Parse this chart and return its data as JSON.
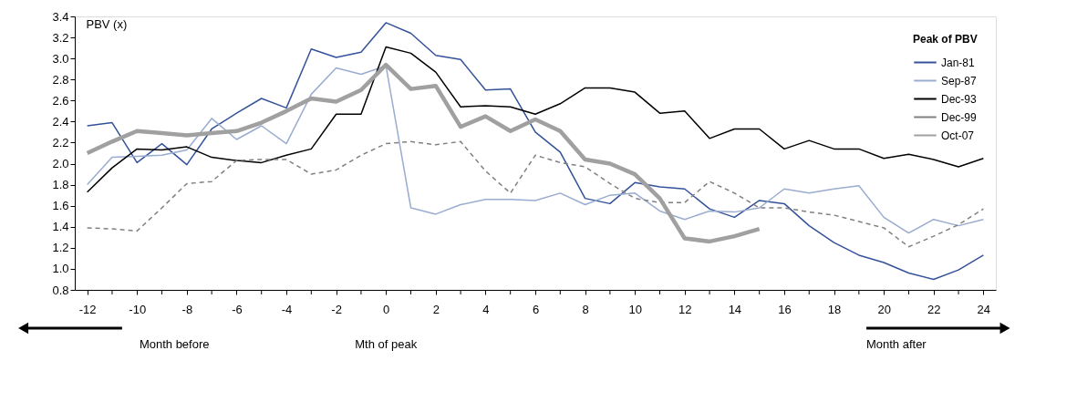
{
  "chart_data": {
    "type": "line",
    "ylabel": "PBV (x)",
    "legend_title": "Peak of PBV",
    "legend": "top right",
    "grid": false,
    "marker": "none",
    "x": [
      -12,
      -11,
      -10,
      -9,
      -8,
      -7,
      -6,
      -5,
      -4,
      -3,
      -2,
      -1,
      0,
      1,
      2,
      3,
      4,
      5,
      6,
      7,
      8,
      9,
      10,
      11,
      12,
      13,
      14,
      15,
      16,
      17,
      18,
      19,
      20,
      21,
      22,
      23,
      24
    ],
    "xlim": [
      -12.5,
      24.5
    ],
    "ylim": [
      0.8,
      3.4
    ],
    "xticks": [
      -12,
      {
        "value": -11,
        "label": null
      },
      -10,
      {
        "value": -9,
        "label": null
      },
      -8,
      {
        "value": -7,
        "label": null
      },
      -6,
      {
        "value": -5,
        "label": null
      },
      -4,
      {
        "value": -3,
        "label": null
      },
      -2,
      {
        "value": -1,
        "label": null
      },
      0,
      {
        "value": 1,
        "label": null
      },
      2,
      {
        "value": 3,
        "label": null
      },
      4,
      {
        "value": 5,
        "label": null
      },
      6,
      {
        "value": 7,
        "label": null
      },
      8,
      {
        "value": 9,
        "label": null
      },
      10,
      {
        "value": 11,
        "label": null
      },
      12,
      {
        "value": 13,
        "label": null
      },
      14,
      {
        "value": 15,
        "label": null
      },
      16,
      {
        "value": 17,
        "label": null
      },
      18,
      {
        "value": 19,
        "label": null
      },
      20,
      {
        "value": 21,
        "label": null
      },
      22,
      {
        "value": 23,
        "label": null
      },
      24
    ],
    "yticks": [
      {
        "value": 0.8,
        "label": "0.8"
      },
      {
        "value": 1.0,
        "label": "1.0"
      },
      1.2,
      1.4,
      1.6,
      1.8,
      {
        "value": 2.0,
        "label": "2.0"
      },
      2.2,
      2.4,
      2.6,
      2.8,
      {
        "value": 3.0,
        "label": "3.0"
      },
      3.2,
      3.4
    ],
    "annotations": [
      "Month before",
      "Mth of peak",
      "Month after"
    ],
    "series": [
      {
        "name": "Jan-81",
        "color": "#34529a",
        "line_style": "solid",
        "values": [
          2.36,
          2.39,
          2.01,
          2.19,
          1.99,
          2.33,
          2.48,
          2.62,
          2.53,
          3.09,
          3.01,
          3.06,
          3.34,
          3.24,
          3.03,
          2.99,
          2.7,
          2.71,
          2.3,
          2.11,
          1.67,
          1.62,
          1.82,
          1.78,
          1.76,
          1.57,
          1.49,
          1.65,
          1.62,
          1.41,
          1.25,
          1.13,
          1.06,
          0.96,
          0.9,
          0.99,
          1.13
        ]
      },
      {
        "name": "Sep-87",
        "color": "#9aaccf",
        "line_style": "solid",
        "values": [
          1.8,
          2.06,
          2.07,
          2.08,
          2.13,
          2.43,
          2.23,
          2.36,
          2.19,
          2.66,
          2.91,
          2.85,
          2.93,
          1.58,
          1.52,
          1.61,
          1.66,
          1.66,
          1.65,
          1.72,
          1.61,
          1.7,
          1.72,
          1.55,
          1.47,
          1.55,
          1.54,
          1.58,
          1.76,
          1.72,
          1.76,
          1.79,
          1.49,
          1.34,
          1.47,
          1.41,
          1.47
        ]
      },
      {
        "name": "Dec-93",
        "color": "#000000",
        "line_style": "solid",
        "values": [
          1.73,
          1.96,
          2.14,
          2.13,
          2.16,
          2.06,
          2.03,
          2.01,
          2.08,
          2.14,
          2.47,
          2.47,
          3.11,
          3.05,
          2.87,
          2.54,
          2.55,
          2.54,
          2.47,
          2.57,
          2.72,
          2.72,
          2.68,
          2.48,
          2.5,
          2.24,
          2.33,
          2.33,
          2.14,
          2.22,
          2.14,
          2.14,
          2.05,
          2.09,
          2.04,
          1.97,
          2.05
        ]
      },
      {
        "name": "Dec-99",
        "color": "#808080",
        "line_style": "dashed",
        "values": [
          1.39,
          1.38,
          1.36,
          1.58,
          1.81,
          1.83,
          2.03,
          2.04,
          2.04,
          1.9,
          1.94,
          2.08,
          2.19,
          2.21,
          2.18,
          2.21,
          1.93,
          1.72,
          2.08,
          2.01,
          1.97,
          1.81,
          1.67,
          1.63,
          1.63,
          1.83,
          1.72,
          1.58,
          1.58,
          1.54,
          1.51,
          1.45,
          1.39,
          1.21,
          1.31,
          1.42,
          1.57
        ]
      },
      {
        "name": "Oct-07",
        "color": "#a0a0a0",
        "line_style": "solid",
        "values": [
          2.1,
          2.21,
          2.31,
          2.29,
          2.27,
          2.29,
          2.31,
          2.39,
          2.5,
          2.62,
          2.59,
          2.7,
          2.94,
          2.71,
          2.74,
          2.35,
          2.45,
          2.31,
          2.42,
          2.31,
          2.04,
          2.0,
          1.9,
          1.67,
          1.29,
          1.26,
          1.31,
          1.38,
          null,
          null,
          null,
          null,
          null,
          null,
          null,
          null,
          null
        ]
      }
    ]
  }
}
